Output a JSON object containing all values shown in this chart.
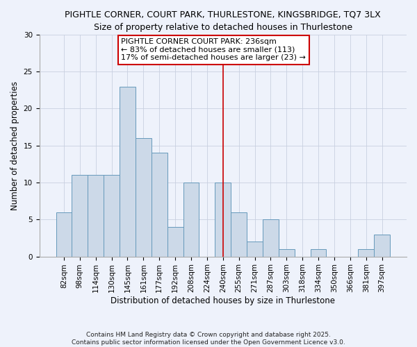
{
  "title": "PIGHTLE CORNER, COURT PARK, THURLESTONE, KINGSBRIDGE, TQ7 3LX",
  "subtitle": "Size of property relative to detached houses in Thurlestone",
  "xlabel": "Distribution of detached houses by size in Thurlestone",
  "ylabel": "Number of detached properties",
  "bar_labels": [
    "82sqm",
    "98sqm",
    "114sqm",
    "130sqm",
    "145sqm",
    "161sqm",
    "177sqm",
    "192sqm",
    "208sqm",
    "224sqm",
    "240sqm",
    "255sqm",
    "271sqm",
    "287sqm",
    "303sqm",
    "318sqm",
    "334sqm",
    "350sqm",
    "366sqm",
    "381sqm",
    "397sqm"
  ],
  "bar_values": [
    6,
    11,
    11,
    11,
    23,
    16,
    14,
    4,
    10,
    0,
    10,
    6,
    2,
    5,
    1,
    0,
    1,
    0,
    0,
    1,
    3
  ],
  "bar_color": "#ccd9e8",
  "bar_edge_color": "#6699bb",
  "vline_x": 10,
  "vline_color": "#cc0000",
  "ylim": [
    0,
    30
  ],
  "yticks": [
    0,
    5,
    10,
    15,
    20,
    25,
    30
  ],
  "annotation_title": "PIGHTLE CORNER COURT PARK: 236sqm",
  "annotation_line1": "← 83% of detached houses are smaller (113)",
  "annotation_line2": "17% of semi-detached houses are larger (23) →",
  "footnote1": "Contains HM Land Registry data © Crown copyright and database right 2025.",
  "footnote2": "Contains public sector information licensed under the Open Government Licence v3.0.",
  "bg_color": "#eef2fb",
  "grid_color": "#c8d0e0",
  "title_fontsize": 9,
  "subtitle_fontsize": 9,
  "axis_label_fontsize": 8.5,
  "tick_fontsize": 7.5,
  "annot_fontsize": 8,
  "footnote_fontsize": 6.5
}
